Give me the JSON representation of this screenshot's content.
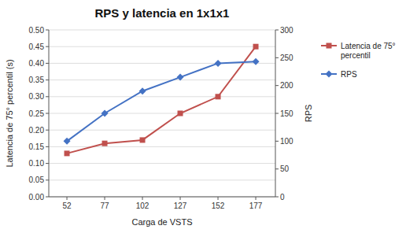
{
  "chart_data": {
    "type": "line",
    "title": "RPS y latencia en 1x1x1",
    "xlabel": "Carga de VSTS",
    "ylabel": "Latencia de 75° percentil (s)",
    "y2label": "RPS",
    "x": [
      52,
      77,
      102,
      127,
      152,
      177
    ],
    "series": [
      {
        "name": "Latencia de 75°\npercentil",
        "color": "#C0504D",
        "marker": "square",
        "values": [
          0.13,
          0.16,
          0.17,
          0.25,
          0.3,
          0.45
        ]
      },
      {
        "name": "RPS",
        "color": "#4472C4",
        "marker": "diamond",
        "axis": "y2",
        "values": [
          100,
          150,
          190,
          215,
          240,
          243
        ]
      }
    ],
    "xlim": [
      40,
      190
    ],
    "xticks": [
      52,
      77,
      102,
      127,
      152,
      177
    ],
    "ylim": [
      0,
      0.5
    ],
    "yticks": [
      {
        "value": 0,
        "label": "0.00"
      },
      0.05,
      {
        "value": 0.1,
        "label": "0.10"
      },
      0.15,
      {
        "value": 0.2,
        "label": "0.20"
      },
      0.25,
      {
        "value": 0.3,
        "label": "0.30"
      },
      0.35,
      {
        "value": 0.4,
        "label": "0.40"
      },
      0.45,
      {
        "value": 0.5,
        "label": "0.50"
      }
    ],
    "y2lim": [
      0,
      300
    ],
    "y2ticks": [
      0,
      50,
      100,
      150,
      200,
      250,
      300
    ],
    "grid": true,
    "legend": "right"
  }
}
